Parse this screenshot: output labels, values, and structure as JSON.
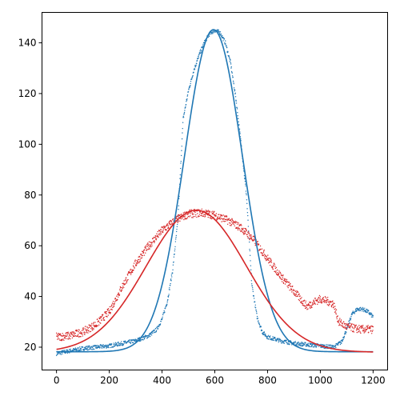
{
  "chart_data": {
    "type": "scatter",
    "title": "",
    "xlabel": "",
    "ylabel": "",
    "xlim": [
      -55,
      1255
    ],
    "ylim": [
      11,
      152
    ],
    "x_ticks": [
      0,
      200,
      400,
      600,
      800,
      1000,
      1200
    ],
    "y_ticks": [
      20,
      40,
      60,
      80,
      100,
      120,
      140
    ],
    "x_tick_labels": [
      "0",
      "200",
      "400",
      "600",
      "800",
      "1000",
      "1200"
    ],
    "y_tick_labels": [
      "20",
      "40",
      "60",
      "80",
      "100",
      "120",
      "140"
    ],
    "grid": false,
    "legend": "none",
    "series": [
      {
        "kind": "scatter",
        "color": "#1f77b4",
        "x": [
          0,
          50,
          100,
          150,
          200,
          250,
          300,
          350,
          380,
          400,
          420,
          440,
          460,
          480,
          500,
          520,
          540,
          560,
          580,
          600,
          620,
          640,
          660,
          680,
          700,
          720,
          740,
          760,
          780,
          800,
          850,
          900,
          950,
          1000,
          1050,
          1080,
          1100,
          1120,
          1140,
          1160,
          1180,
          1200
        ],
        "y": [
          17.5,
          18.5,
          19.5,
          20,
          20.5,
          21.5,
          22.5,
          24.5,
          27,
          31,
          38,
          50,
          70,
          110,
          121,
          129,
          135,
          140,
          143.5,
          145,
          144,
          140,
          132,
          118,
          100,
          80,
          45,
          32,
          26,
          24,
          22.5,
          21.5,
          21,
          20.5,
          20,
          22,
          27,
          33,
          35,
          35,
          34,
          32
        ]
      },
      {
        "kind": "scatter",
        "color": "#d62728",
        "x": [
          0,
          50,
          100,
          150,
          200,
          250,
          300,
          350,
          400,
          450,
          500,
          550,
          600,
          650,
          700,
          750,
          800,
          850,
          900,
          950,
          980,
          1000,
          1030,
          1050,
          1070,
          1100,
          1150,
          1200
        ],
        "y": [
          24,
          24.5,
          26,
          29,
          34,
          44,
          53,
          60,
          66,
          70,
          72.5,
          73,
          72,
          70,
          67,
          62,
          55,
          48,
          42,
          36,
          38,
          39,
          38,
          37,
          30,
          28,
          27,
          27
        ]
      },
      {
        "kind": "line",
        "color": "#1f77b4",
        "fit": "gaussian",
        "amplitude": 127,
        "center": 595,
        "sigma": 110,
        "offset": 18.2,
        "x_range": [
          0,
          1200
        ]
      },
      {
        "kind": "line",
        "color": "#d62728",
        "fit": "gaussian",
        "amplitude": 56,
        "center": 530,
        "sigma": 190,
        "offset": 18,
        "x_range": [
          0,
          1200
        ]
      }
    ]
  }
}
